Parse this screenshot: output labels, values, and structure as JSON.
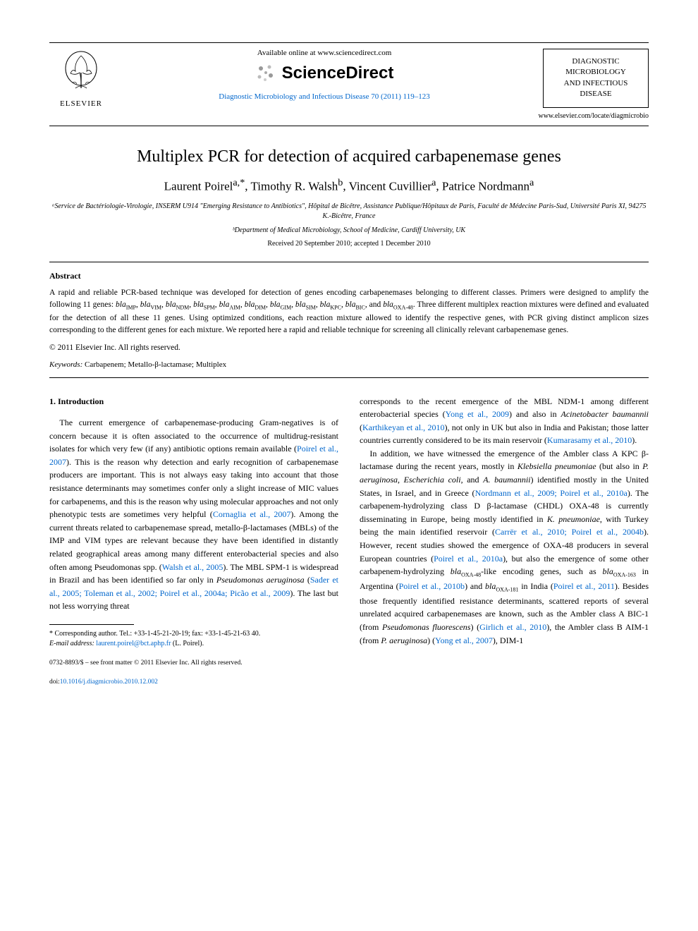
{
  "header": {
    "elsevier_label": "ELSEVIER",
    "available_text": "Available online at www.sciencedirect.com",
    "sciencedirect": "ScienceDirect",
    "sd_icon_color": "#888888",
    "citation": "Diagnostic Microbiology and Infectious Disease 70 (2011) 119–123",
    "citation_color": "#0066cc",
    "journal_box_line1": "DIAGNOSTIC",
    "journal_box_line2": "MICROBIOLOGY",
    "journal_box_line3": "AND INFECTIOUS",
    "journal_box_line4": "DISEASE",
    "journal_url": "www.elsevier.com/locate/diagmicrobio"
  },
  "title": "Multiplex PCR for detection of acquired carbapenemase genes",
  "authors_html": "Laurent Poirel<sup>a,*</sup>, Timothy R. Walsh<sup>b</sup>, Vincent Cuvillier<sup>a</sup>, Patrice Nordmann<sup>a</sup>",
  "affiliations": {
    "a": "ᵃService de Bactériologie-Virologie, INSERM U914 \"Emerging Resistance to Antibiotics\", Hôpital de Bicêtre, Assistance Publique/Hôpitaux de Paris, Faculté de Médecine Paris-Sud, Université Paris XI, 94275 K.-Bicêtre, France",
    "b": "ᵇDepartment of Medical Microbiology, School of Medicine, Cardiff University, UK"
  },
  "dates": "Received 20 September 2010; accepted 1 December 2010",
  "abstract": {
    "heading": "Abstract",
    "body": "A rapid and reliable PCR-based technique was developed for detection of genes encoding carbapenemases belonging to different classes. Primers were designed to amplify the following 11 genes: blaIMP, blaVIM, blaNDM, blaSPM, blaAIM, blaDIM, blaGIM, blaSIM, blaKPC, blaBIC, and blaOXA-48. Three different multiplex reaction mixtures were defined and evaluated for the detection of all these 11 genes. Using optimized conditions, each reaction mixture allowed to identify the respective genes, with PCR giving distinct amplicon sizes corresponding to the different genes for each mixture. We reported here a rapid and reliable technique for screening all clinically relevant carbapenemase genes.",
    "copyright": "© 2011 Elsevier Inc. All rights reserved."
  },
  "keywords": {
    "label": "Keywords:",
    "text": "Carbapenem; Metallo-β-lactamase; Multiplex"
  },
  "section1": {
    "heading": "1. Introduction",
    "col1": "The current emergence of carbapenemase-producing Gram-negatives is of concern because it is often associated to the occurrence of multidrug-resistant isolates for which very few (if any) antibiotic options remain available (Poirel et al., 2007). This is the reason why detection and early recognition of carbapenemase producers are important. This is not always easy taking into account that those resistance determinants may sometimes confer only a slight increase of MIC values for carbapenems, and this is the reason why using molecular approaches and not only phenotypic tests are sometimes very helpful (Cornaglia et al., 2007). Among the current threats related to carbapenemase spread, metallo-β-lactamases (MBLs) of the IMP and VIM types are relevant because they have been identified in distantly related geographical areas among many different enterobacterial species and also often among Pseudomonas spp. (Walsh et al., 2005). The MBL SPM-1 is widespread in Brazil and has been identified so far only in Pseudomonas aeruginosa (Sader et al., 2005; Toleman et al., 2002; Poirel et al., 2004a; Picão et al., 2009). The last but not less worrying threat",
    "col2": "corresponds to the recent emergence of the MBL NDM-1 among different enterobacterial species (Yong et al., 2009) and also in Acinetobacter baumannii (Karthikeyan et al., 2010), not only in UK but also in India and Pakistan; those latter countries currently considered to be its main reservoir (Kumarasamy et al., 2010).",
    "col2_p2": "In addition, we have witnessed the emergence of the Ambler class A KPC β-lactamase during the recent years, mostly in Klebsiella pneumoniae (but also in P. aeruginosa, Escherichia coli, and A. baumannii) identified mostly in the United States, in Israel, and in Greece (Nordmann et al., 2009; Poirel et al., 2010a). The carbapenem-hydrolyzing class D β-lactamase (CHDL) OXA-48 is currently disseminating in Europe, being mostly identified in K. pneumoniae, with Turkey being the main identified reservoir (Carrër et al., 2010; Poirel et al., 2004b). However, recent studies showed the emergence of OXA-48 producers in several European countries (Poirel et al., 2010a), but also the emergence of some other carbapenem-hydrolyzing blaOXA-48-like encoding genes, such as blaOXA-163 in Argentina (Poirel et al., 2010b) and blaOXA-181 in India (Poirel et al., 2011). Besides those frequently identified resistance determinants, scattered reports of several unrelated acquired carbapenemases are known, such as the Ambler class A BIC-1 (from Pseudomonas fluorescens) (Girlich et al., 2010), the Ambler class B AIM-1 (from P. aeruginosa) (Yong et al., 2007), DIM-1"
  },
  "footnote": {
    "corresponding": "* Corresponding author. Tel.: +33-1-45-21-20-19; fax: +33-1-45-21-63 40.",
    "email_label": "E-mail address:",
    "email": "laurent.poirel@bct.aphp.fr",
    "email_suffix": "(L. Poirel)."
  },
  "bottom": {
    "issn": "0732-8893/$ – see front matter © 2011 Elsevier Inc. All rights reserved.",
    "doi_prefix": "doi:",
    "doi": "10.1016/j.diagmicrobio.2010.12.002"
  },
  "colors": {
    "link": "#0066cc",
    "text": "#000000",
    "bg": "#ffffff"
  },
  "typography": {
    "title_fontsize": 24,
    "authors_fontsize": 17,
    "body_fontsize": 12,
    "abstract_fontsize": 11.5,
    "footnote_fontsize": 10
  }
}
